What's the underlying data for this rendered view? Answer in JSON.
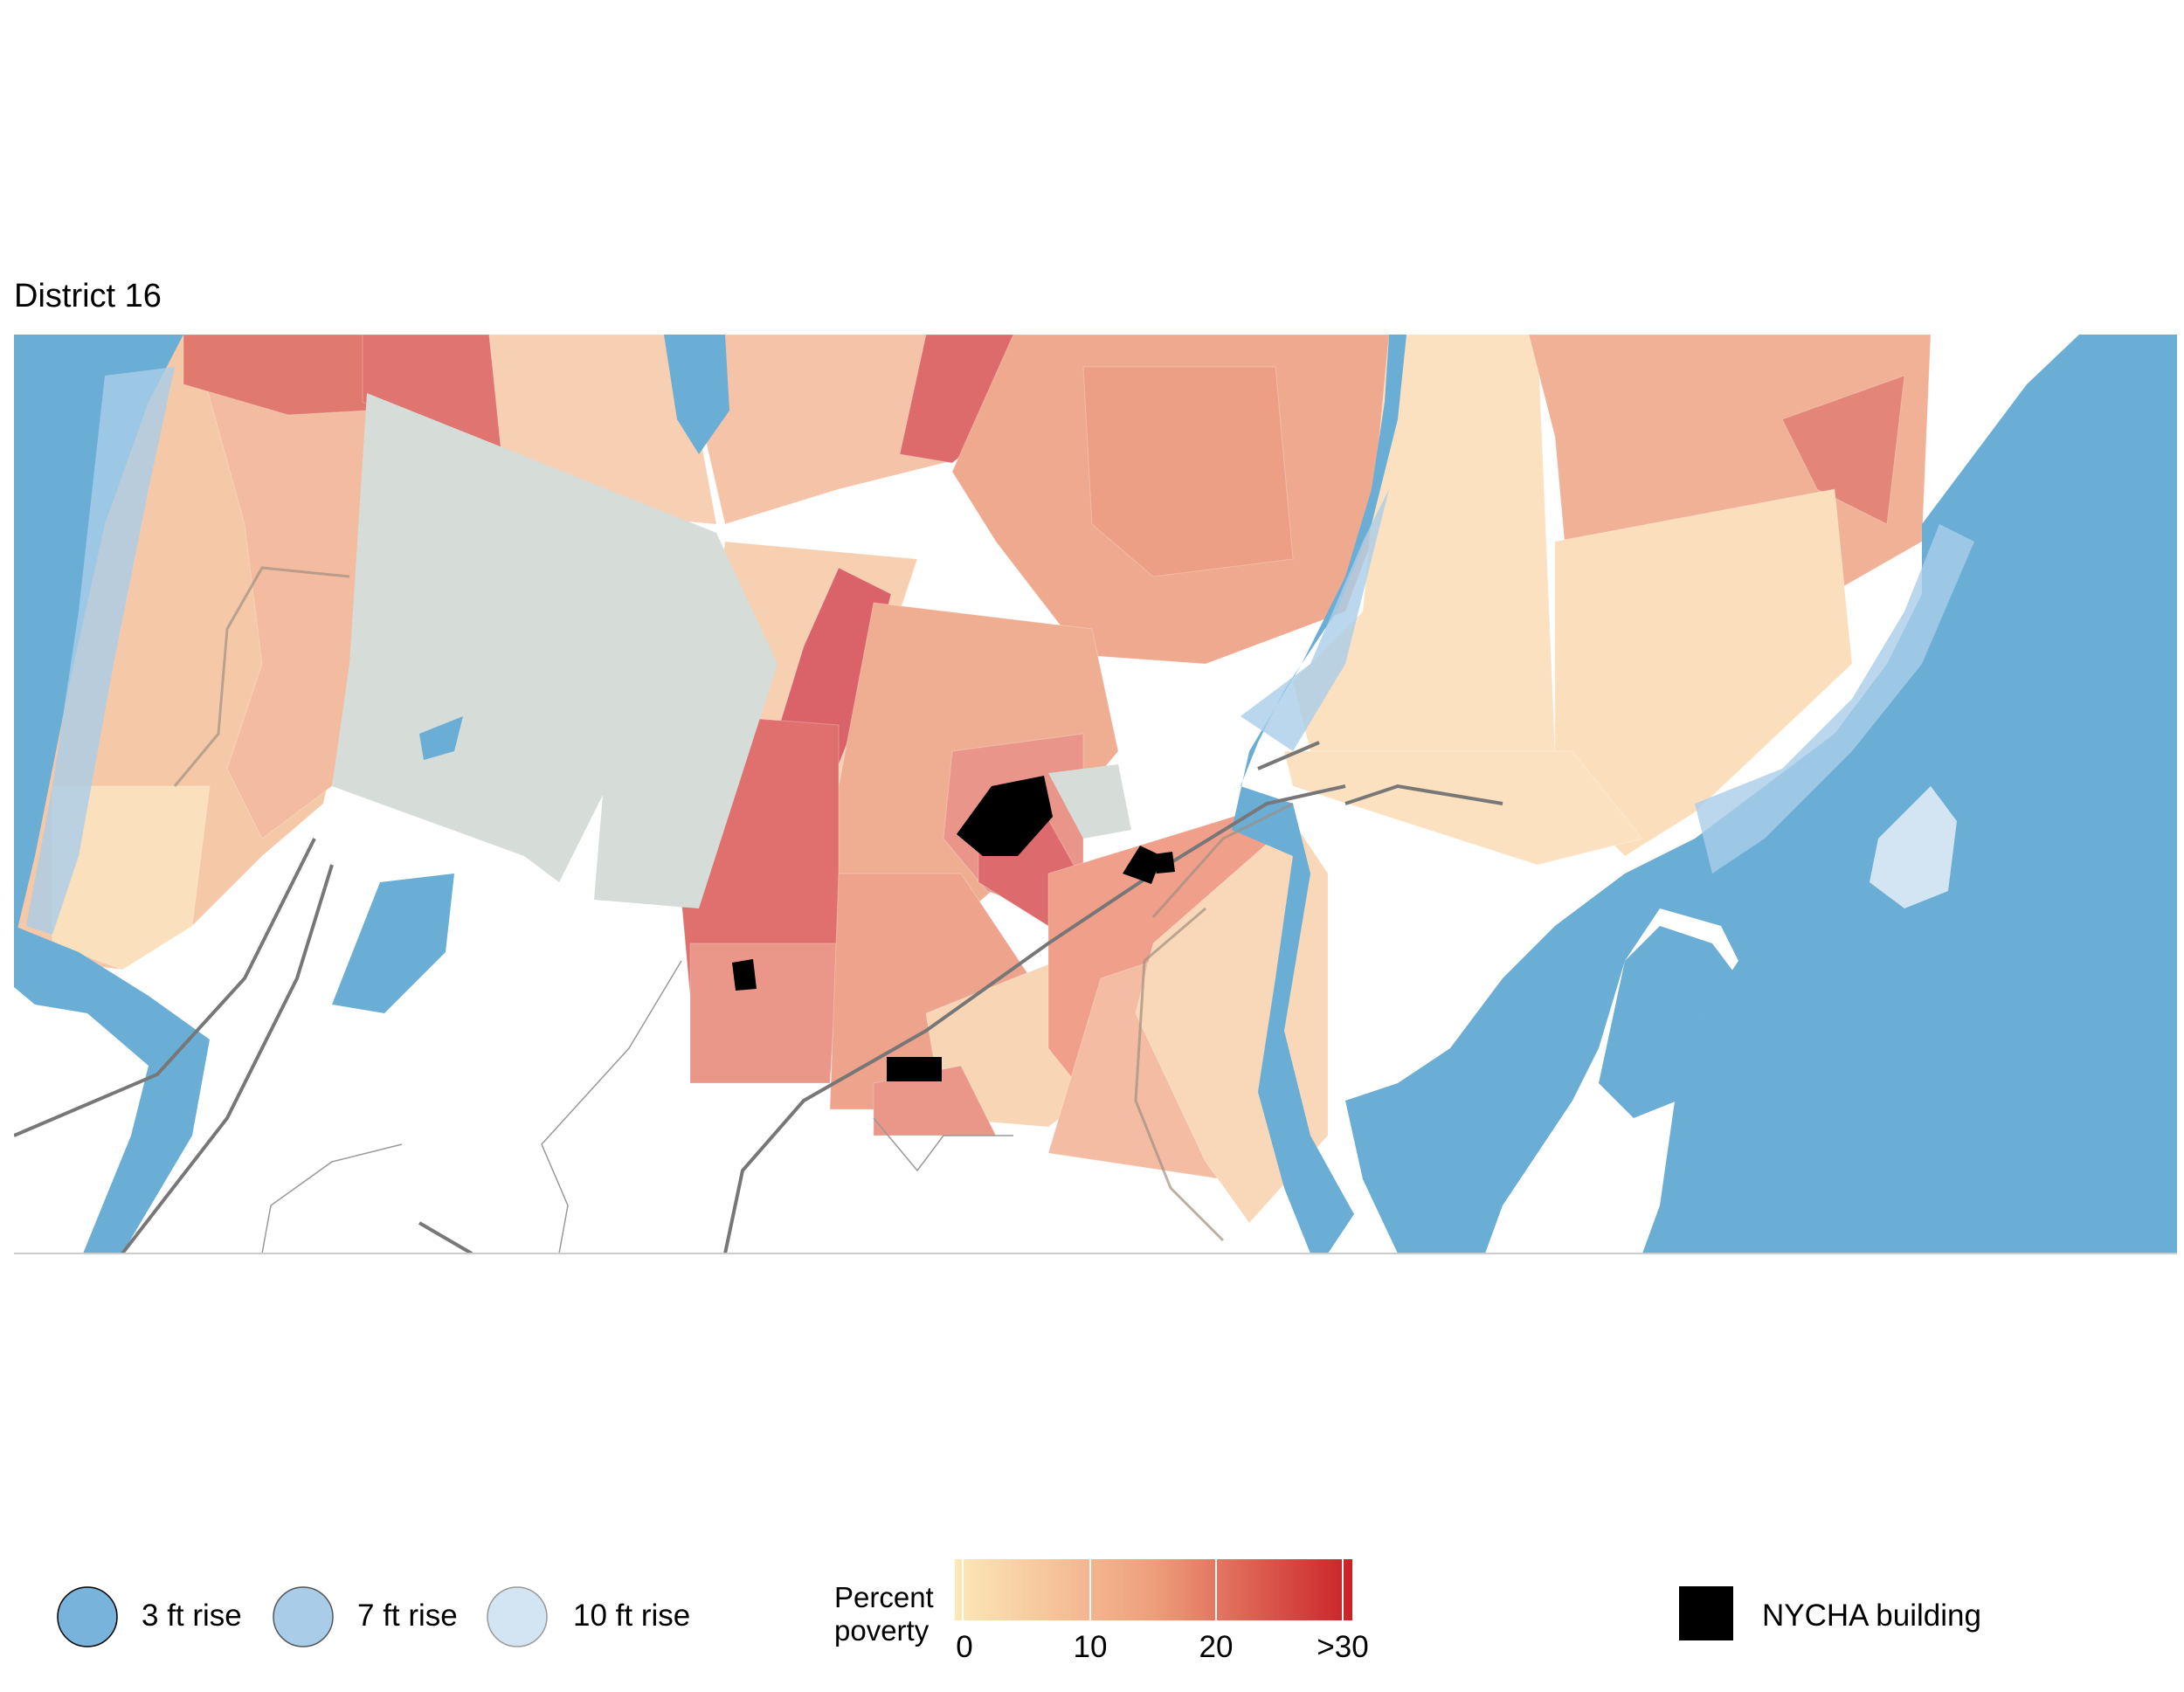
{
  "map": {
    "title": "District 16",
    "colors": {
      "water": "#6aaed6",
      "no_data": "#d6dcd7",
      "nycha": "#000000",
      "road": "#777777"
    }
  },
  "legend": {
    "flood": [
      {
        "label": "3 ft rise",
        "color": "#78b3dc"
      },
      {
        "label": "7 ft rise",
        "color": "#a9cde8"
      },
      {
        "label": "10 ft rise",
        "color": "#d3e5f3"
      }
    ],
    "poverty": {
      "title_line1": "Percent",
      "title_line2": "poverty",
      "ticks": [
        "0",
        "10",
        "20",
        ">30"
      ],
      "color_low": "#fce8b8",
      "color_mid": "#ee9e7c",
      "color_high": "#cb2127"
    },
    "nycha_label": "NYCHA building"
  }
}
